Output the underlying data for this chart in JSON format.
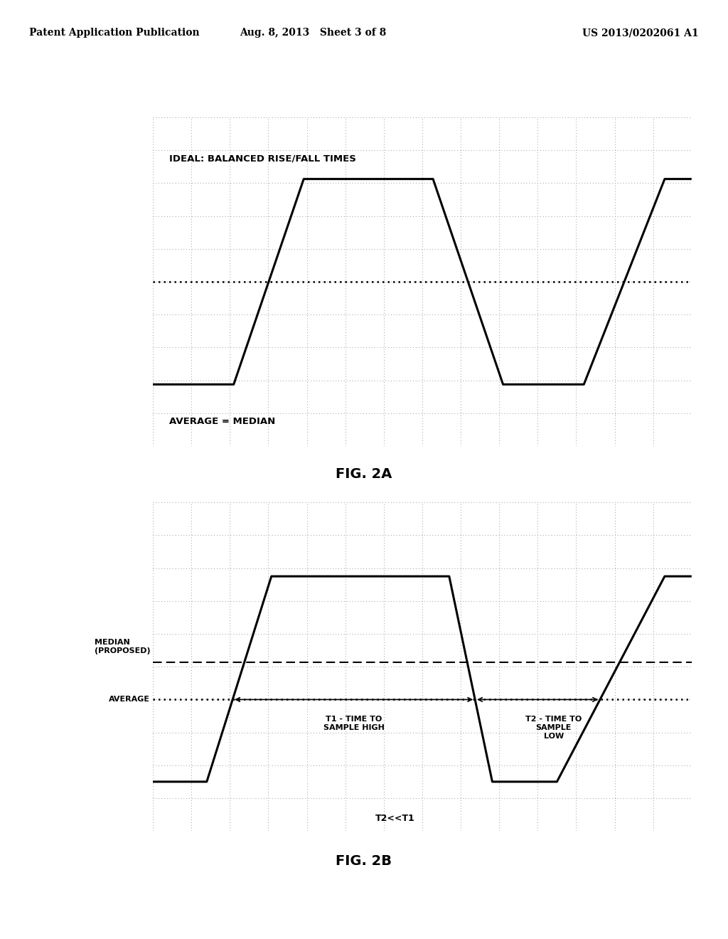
{
  "bg_color": "#ffffff",
  "header_left": "Patent Application Publication",
  "header_mid": "Aug. 8, 2013   Sheet 3 of 8",
  "header_right": "US 2013/0202061 A1",
  "header_fontsize": 11,
  "fig2a_title": "FIG. 2A",
  "fig2a_label_top": "IDEAL: BALANCED RISE/FALL TIMES",
  "fig2a_label_bottom": "AVERAGE = MEDIAN",
  "fig2b_title": "FIG. 2B",
  "fig2b_label_median": "MEDIAN\n(PROPOSED)",
  "fig2b_label_average": "AVERAGE",
  "fig2b_label_t1": "T1 - TIME TO\nSAMPLE HIGH",
  "fig2b_label_t2": "T2 - TIME TO\nSAMPLE\nLOW",
  "fig2b_label_t2t1": "T2<<T1",
  "line_color": "#000000",
  "grid_dot_color": "#999999"
}
